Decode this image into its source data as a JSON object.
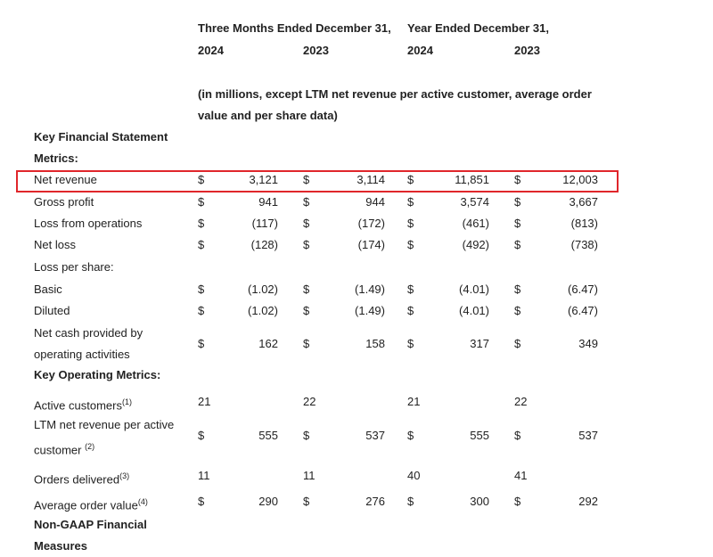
{
  "header": {
    "period_1": "Three Months Ended December 31,",
    "period_2": "Year Ended December 31,",
    "years": [
      "2024",
      "2023",
      "2024",
      "2023"
    ],
    "note": "(in millions, except LTM net revenue per active customer, average order value and per share data)"
  },
  "rows": [
    {
      "label": "Key Financial Statement Metrics:",
      "section": true
    },
    {
      "label": "Net revenue",
      "highlight": true,
      "cells": [
        {
          "symbol": "$",
          "value": "3,121"
        },
        {
          "symbol": "$",
          "value": "3,114"
        },
        {
          "symbol": "$",
          "value": "11,851"
        },
        {
          "symbol": "$",
          "value": "12,003"
        }
      ]
    },
    {
      "label": "Gross profit",
      "cells": [
        {
          "symbol": "$",
          "value": "941"
        },
        {
          "symbol": "$",
          "value": "944"
        },
        {
          "symbol": "$",
          "value": "3,574"
        },
        {
          "symbol": "$",
          "value": "3,667"
        }
      ]
    },
    {
      "label": "Loss from operations",
      "cells": [
        {
          "symbol": "$",
          "value": "(117)"
        },
        {
          "symbol": "$",
          "value": "(172)"
        },
        {
          "symbol": "$",
          "value": "(461)"
        },
        {
          "symbol": "$",
          "value": "(813)"
        }
      ]
    },
    {
      "label": "Net loss",
      "cells": [
        {
          "symbol": "$",
          "value": "(128)"
        },
        {
          "symbol": "$",
          "value": "(174)"
        },
        {
          "symbol": "$",
          "value": "(492)"
        },
        {
          "symbol": "$",
          "value": "(738)"
        }
      ]
    },
    {
      "label": "Loss per share:"
    },
    {
      "label": "Basic",
      "cells": [
        {
          "symbol": "$",
          "value": "(1.02)"
        },
        {
          "symbol": "$",
          "value": "(1.49)"
        },
        {
          "symbol": "$",
          "value": "(4.01)"
        },
        {
          "symbol": "$",
          "value": "(6.47)"
        }
      ]
    },
    {
      "label": "Diluted",
      "cells": [
        {
          "symbol": "$",
          "value": "(1.02)"
        },
        {
          "symbol": "$",
          "value": "(1.49)"
        },
        {
          "symbol": "$",
          "value": "(4.01)"
        },
        {
          "symbol": "$",
          "value": "(6.47)"
        }
      ]
    },
    {
      "label": "Net cash provided by operating activities",
      "cells": [
        {
          "symbol": "$",
          "value": "162"
        },
        {
          "symbol": "$",
          "value": "158"
        },
        {
          "symbol": "$",
          "value": "317"
        },
        {
          "symbol": "$",
          "value": "349"
        }
      ]
    },
    {
      "label": "Key Operating Metrics:",
      "section": true
    },
    {
      "label": "Active customers",
      "note": "(1)",
      "cells": [
        {
          "value": "21"
        },
        {
          "value": "22"
        },
        {
          "value": "21"
        },
        {
          "value": "22"
        }
      ]
    },
    {
      "label": "LTM net revenue per active customer",
      "note": "(2)",
      "cells": [
        {
          "symbol": "$",
          "value": "555"
        },
        {
          "symbol": "$",
          "value": "537"
        },
        {
          "symbol": "$",
          "value": "555"
        },
        {
          "symbol": "$",
          "value": "537"
        }
      ]
    },
    {
      "label": "Orders delivered",
      "note": "(3)",
      "cells": [
        {
          "value": "11"
        },
        {
          "value": "11"
        },
        {
          "value": "40"
        },
        {
          "value": "41"
        }
      ]
    },
    {
      "label": "Average order value",
      "note": "(4)",
      "cells": [
        {
          "symbol": "$",
          "value": "290"
        },
        {
          "symbol": "$",
          "value": "276"
        },
        {
          "symbol": "$",
          "value": "300"
        },
        {
          "symbol": "$",
          "value": "292"
        }
      ]
    },
    {
      "label": "Non-GAAP Financial Measures",
      "section": true
    }
  ]
}
